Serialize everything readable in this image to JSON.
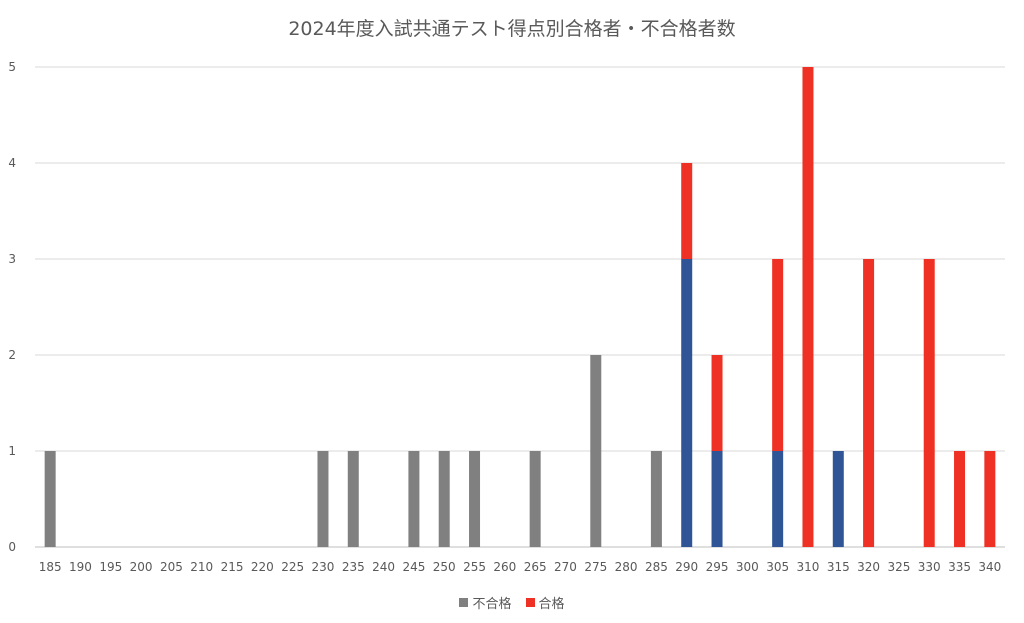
{
  "chart_data": {
    "type": "bar",
    "stacked": true,
    "title": "2024年度入試共通テスト得点別合格者・不合格者数",
    "categories": [
      "185",
      "190",
      "195",
      "200",
      "205",
      "210",
      "215",
      "220",
      "225",
      "230",
      "235",
      "240",
      "245",
      "250",
      "255",
      "260",
      "265",
      "270",
      "275",
      "280",
      "285",
      "290",
      "295",
      "300",
      "305",
      "310",
      "315",
      "320",
      "325",
      "330",
      "335",
      "340"
    ],
    "ylim": [
      0,
      5
    ],
    "yticks": [
      0,
      1,
      2,
      3,
      4,
      5
    ],
    "grid": true,
    "legend_position": "bottom",
    "series": [
      {
        "name": "不合格",
        "color": "#808080",
        "values": [
          1,
          0,
          0,
          0,
          0,
          0,
          0,
          0,
          0,
          1,
          1,
          0,
          1,
          1,
          1,
          0,
          1,
          0,
          2,
          0,
          1,
          0,
          0,
          0,
          0,
          0,
          0,
          0,
          0,
          0,
          0,
          0
        ]
      },
      {
        "color": "#2F5597",
        "values": [
          0,
          0,
          0,
          0,
          0,
          0,
          0,
          0,
          0,
          0,
          0,
          0,
          0,
          0,
          0,
          0,
          0,
          0,
          0,
          0,
          0,
          3,
          1,
          0,
          1,
          0,
          1,
          0,
          0,
          0,
          0,
          0
        ]
      },
      {
        "name": "合格",
        "color": "#EE3124",
        "values": [
          0,
          0,
          0,
          0,
          0,
          0,
          0,
          0,
          0,
          0,
          0,
          0,
          0,
          0,
          0,
          0,
          0,
          0,
          0,
          0,
          0,
          1,
          1,
          0,
          2,
          5,
          0,
          3,
          0,
          3,
          1,
          1
        ]
      }
    ]
  }
}
